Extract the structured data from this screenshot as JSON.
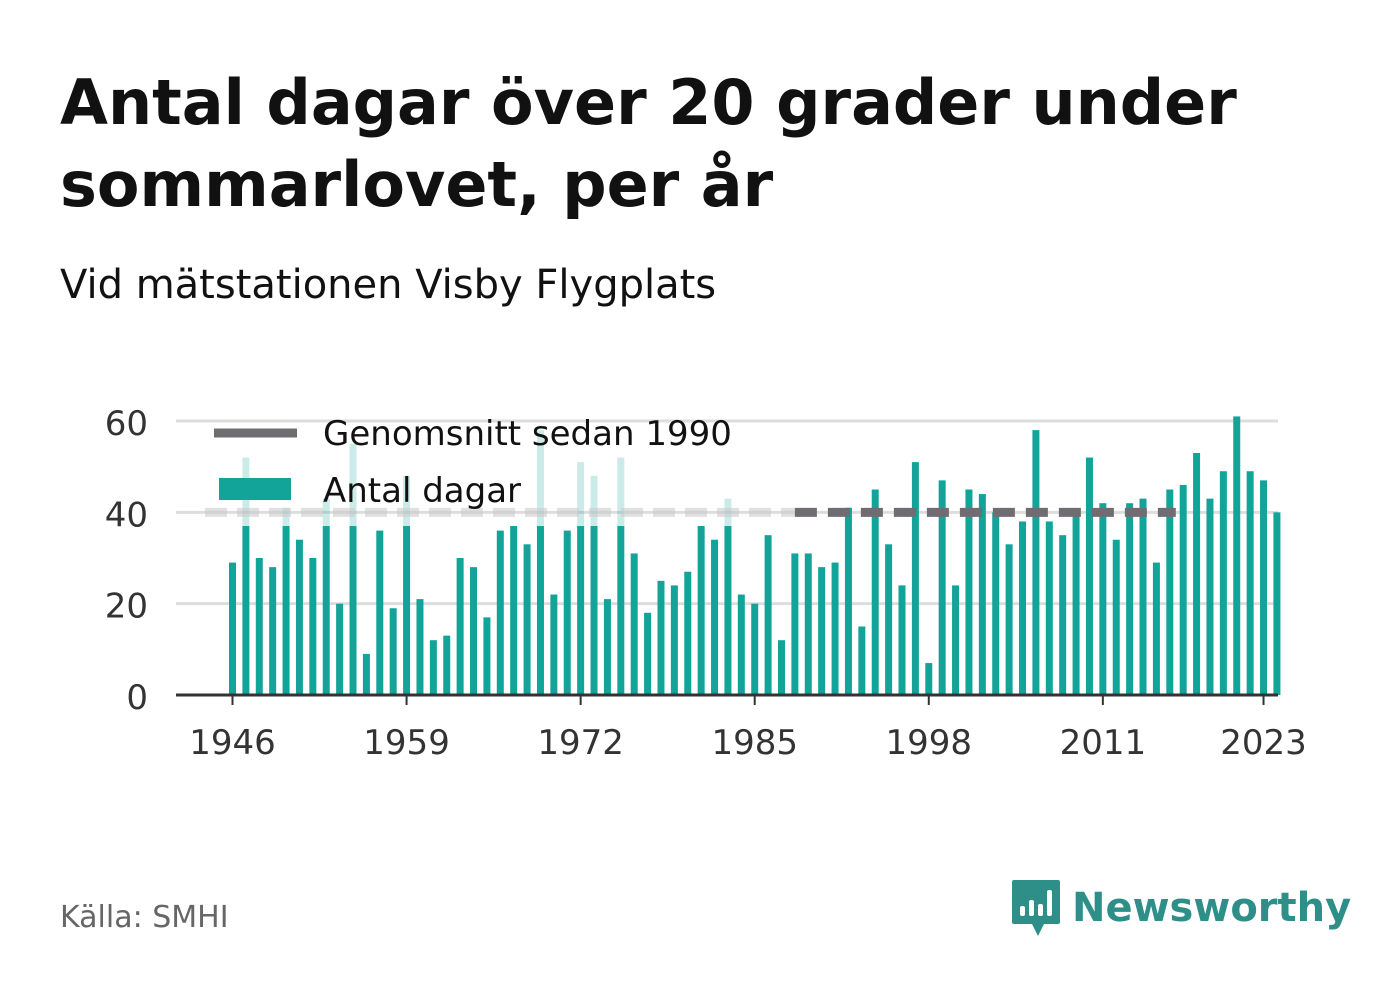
{
  "title": "Antal dagar över 20 grader under sommarlovet, per år",
  "subtitle": "Vid mätstationen Visby Flygplats",
  "source": "Källa: SMHI",
  "brand": {
    "name": "Newsworthy",
    "icon": "newsworthy-logo-icon",
    "color": "#2e8f89"
  },
  "colors": {
    "bar": "#12a499",
    "average": "#6f6c72",
    "grid": "#dddddd",
    "axis": "#333333"
  },
  "chart_data": {
    "type": "bar",
    "legend": [
      "Genomsnitt sedan 1990",
      "Antal dagar"
    ],
    "legend_position": "top-left",
    "ylim": [
      0,
      60
    ],
    "yticks": [
      0,
      20,
      40,
      60
    ],
    "xticks": [
      1946,
      1959,
      1972,
      1985,
      1998,
      2011,
      2023
    ],
    "grid": true,
    "average": {
      "name": "Genomsnitt sedan 1990",
      "value": 40,
      "from": 1990,
      "to": 2024
    },
    "series": [
      {
        "name": "Antal dagar",
        "x": [
          1946,
          1947,
          1948,
          1949,
          1950,
          1951,
          1952,
          1953,
          1954,
          1955,
          1956,
          1957,
          1958,
          1959,
          1960,
          1961,
          1962,
          1963,
          1964,
          1965,
          1966,
          1967,
          1968,
          1969,
          1970,
          1971,
          1972,
          1973,
          1974,
          1975,
          1976,
          1977,
          1978,
          1979,
          1980,
          1981,
          1982,
          1983,
          1984,
          1985,
          1986,
          1987,
          1988,
          1989,
          1990,
          1991,
          1992,
          1993,
          1994,
          1995,
          1996,
          1997,
          1998,
          1999,
          2000,
          2001,
          2002,
          2003,
          2004,
          2005,
          2006,
          2007,
          2008,
          2009,
          2010,
          2011,
          2012,
          2013,
          2014,
          2015,
          2016,
          2017,
          2018,
          2019,
          2020,
          2021,
          2022,
          2023,
          2024
        ],
        "values": [
          29,
          52,
          30,
          28,
          41,
          34,
          30,
          43,
          20,
          55,
          9,
          36,
          19,
          48,
          21,
          12,
          13,
          30,
          28,
          17,
          36,
          37,
          33,
          58,
          22,
          36,
          51,
          48,
          21,
          52,
          31,
          18,
          25,
          24,
          27,
          37,
          34,
          43,
          22,
          20,
          35,
          12,
          31,
          31,
          28,
          29,
          41,
          15,
          45,
          33,
          24,
          51,
          7,
          47,
          24,
          45,
          44,
          40,
          33,
          38,
          58,
          38,
          35,
          40,
          52,
          42,
          34,
          42,
          43,
          29,
          45,
          46,
          53,
          43,
          49,
          61,
          49,
          47,
          40
        ],
        "highlighted": [
          false,
          true,
          false,
          false,
          true,
          false,
          false,
          true,
          false,
          true,
          false,
          false,
          false,
          true,
          false,
          false,
          false,
          false,
          false,
          false,
          false,
          false,
          false,
          true,
          false,
          false,
          true,
          true,
          false,
          true,
          false,
          false,
          false,
          false,
          false,
          false,
          false,
          true,
          false,
          false,
          false,
          false,
          false,
          false,
          false,
          false,
          false,
          false,
          false,
          false,
          false,
          false,
          false,
          false,
          false,
          false,
          false,
          false,
          false,
          false,
          false,
          false,
          false,
          false,
          false,
          false,
          false,
          false,
          false,
          false,
          false,
          false,
          false,
          false,
          false,
          false,
          false,
          false,
          false
        ]
      }
    ]
  }
}
